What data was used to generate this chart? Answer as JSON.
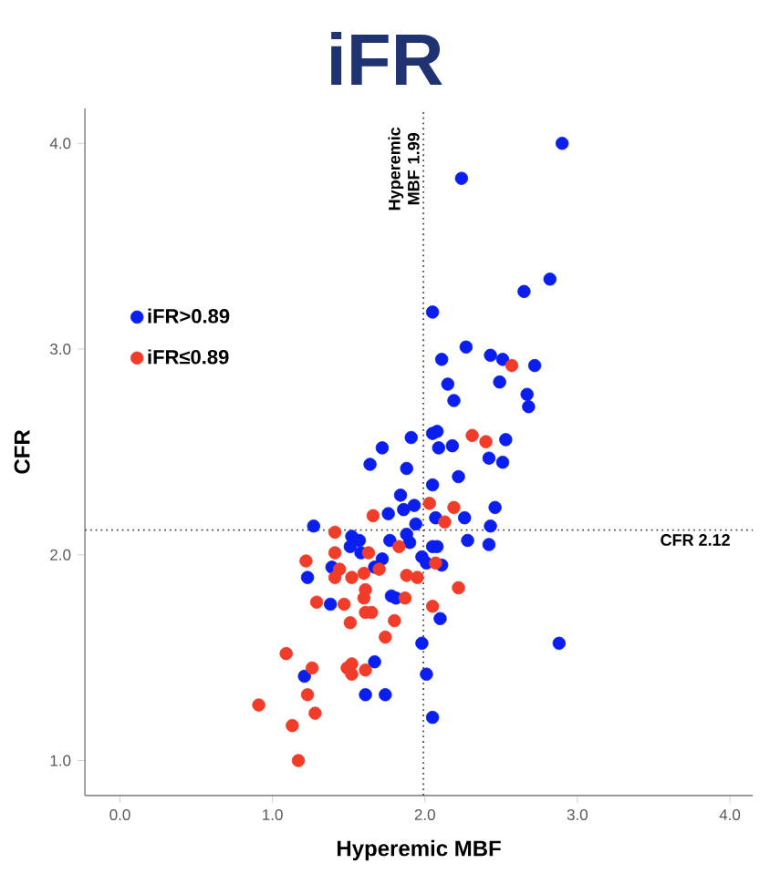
{
  "chart_data": {
    "type": "scatter",
    "title": "iFR",
    "xlabel": "Hyperemic MBF",
    "ylabel": "CFR",
    "xlim": [
      -0.23,
      4.15
    ],
    "ylim": [
      0.83,
      4.17
    ],
    "xticks": [
      {
        "value": 0,
        "label": "0.0"
      },
      {
        "value": 1,
        "label": "1.0"
      },
      {
        "value": 2,
        "label": "2.0"
      },
      {
        "value": 3,
        "label": "3.0"
      },
      {
        "value": 4,
        "label": "4.0"
      }
    ],
    "yticks": [
      {
        "value": 1,
        "label": "1.0"
      },
      {
        "value": 2,
        "label": "2.0"
      },
      {
        "value": 3,
        "label": "3.0"
      },
      {
        "value": 4,
        "label": "4.0"
      }
    ],
    "legend": "top left",
    "marker": "circle",
    "series": [
      {
        "name": "iFR>0.89",
        "color": "#0a1ef0",
        "x": [
          2.9,
          2.24,
          2.82,
          2.65,
          2.05,
          2.27,
          2.11,
          2.43,
          2.51,
          2.72,
          2.15,
          2.49,
          2.19,
          2.67,
          2.68,
          1.91,
          2.05,
          2.08,
          2.09,
          2.18,
          2.53,
          1.72,
          2.42,
          2.51,
          1.64,
          1.88,
          2.05,
          2.22,
          1.84,
          1.76,
          1.86,
          1.93,
          2.46,
          2.26,
          2.07,
          1.94,
          2.43,
          1.27,
          1.88,
          1.77,
          1.9,
          2.28,
          2.42,
          1.52,
          1.57,
          1.51,
          1.58,
          2.05,
          2.08,
          1.98,
          2.01,
          2.11,
          1.72,
          1.67,
          1.39,
          1.23,
          1.78,
          1.81,
          1.38,
          2.1,
          1.98,
          2.88,
          1.67,
          1.21,
          2.01,
          1.61,
          1.74,
          2.05
        ],
        "values": [
          4.0,
          3.83,
          3.34,
          3.28,
          3.18,
          3.01,
          2.95,
          2.97,
          2.95,
          2.92,
          2.83,
          2.84,
          2.75,
          2.78,
          2.72,
          2.57,
          2.59,
          2.6,
          2.52,
          2.53,
          2.56,
          2.52,
          2.47,
          2.45,
          2.44,
          2.42,
          2.34,
          2.38,
          2.29,
          2.2,
          2.22,
          2.24,
          2.23,
          2.18,
          2.18,
          2.15,
          2.14,
          2.14,
          2.1,
          2.07,
          2.06,
          2.07,
          2.05,
          2.09,
          2.07,
          2.04,
          2.01,
          2.04,
          2.04,
          1.99,
          1.96,
          1.95,
          1.98,
          1.94,
          1.94,
          1.89,
          1.8,
          1.79,
          1.76,
          1.69,
          1.57,
          1.57,
          1.48,
          1.41,
          1.42,
          1.32,
          1.32,
          1.21
        ]
      },
      {
        "name": "iFR≤0.89",
        "color": "#f03c28",
        "x": [
          2.57,
          2.31,
          2.4,
          2.03,
          2.19,
          1.66,
          2.13,
          1.41,
          1.83,
          1.41,
          1.63,
          1.22,
          2.07,
          1.7,
          1.44,
          1.41,
          1.52,
          1.6,
          1.88,
          1.95,
          2.22,
          1.61,
          1.6,
          1.29,
          1.47,
          1.87,
          2.05,
          1.65,
          1.61,
          1.8,
          1.51,
          1.74,
          1.09,
          1.52,
          1.49,
          1.26,
          1.61,
          1.52,
          1.23,
          0.91,
          1.28,
          1.13,
          1.17
        ],
        "values": [
          2.92,
          2.58,
          2.55,
          2.25,
          2.23,
          2.19,
          2.16,
          2.11,
          2.04,
          2.01,
          2.01,
          1.97,
          1.96,
          1.93,
          1.93,
          1.89,
          1.89,
          1.91,
          1.9,
          1.89,
          1.84,
          1.83,
          1.79,
          1.77,
          1.76,
          1.79,
          1.75,
          1.72,
          1.72,
          1.68,
          1.67,
          1.6,
          1.52,
          1.47,
          1.45,
          1.45,
          1.44,
          1.42,
          1.32,
          1.27,
          1.23,
          1.17,
          1.0
        ]
      }
    ],
    "ref_lines": [
      {
        "axis": "x",
        "value": 1.99,
        "label": "Hyperemic MBF 1.99",
        "line_style": "dotted"
      },
      {
        "axis": "y",
        "value": 2.12,
        "label": "CFR 2.12",
        "line_style": "dotted"
      }
    ]
  }
}
